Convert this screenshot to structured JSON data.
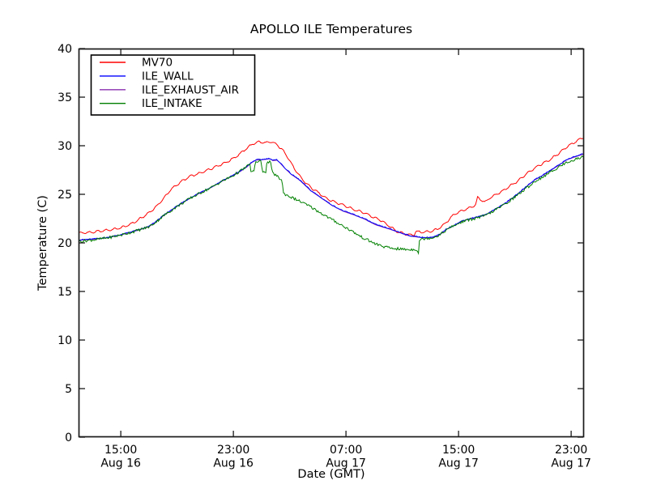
{
  "chart_data": {
    "type": "line",
    "title": "APOLLO ILE Temperatures",
    "xlabel": "Date (GMT)",
    "ylabel": "Temperature (C)",
    "ylim": [
      0,
      40
    ],
    "yticks": [
      0,
      5,
      10,
      15,
      20,
      25,
      30,
      35,
      40
    ],
    "x_unit": "hours after left edge (~12:00 Aug 16 GMT)",
    "xlim": [
      0,
      35.92
    ],
    "xticks": [
      {
        "t": 3,
        "time": "15:00",
        "date": "Aug 16"
      },
      {
        "t": 11,
        "time": "23:00",
        "date": "Aug 16"
      },
      {
        "t": 19,
        "time": "07:00",
        "date": "Aug 17"
      },
      {
        "t": 27,
        "time": "15:00",
        "date": "Aug 17"
      },
      {
        "t": 35,
        "time": "23:00",
        "date": "Aug 17"
      }
    ],
    "grid": false,
    "legend_position": "upper left",
    "legend": [
      {
        "label": "MV70",
        "color": "#ff0000"
      },
      {
        "label": "ILE_WALL",
        "color": "#0000ff"
      },
      {
        "label": "ILE_EXHAUST_AIR",
        "color": "#8b2fb0"
      },
      {
        "label": "ILE_INTAKE",
        "color": "#008000"
      }
    ],
    "draw_order": [
      "MV70",
      "ILE_EXHAUST_AIR",
      "ILE_WALL",
      "ILE_INTAKE"
    ],
    "series": [
      {
        "name": "MV70",
        "color": "#ff0000",
        "texture": {
          "noise": 0.035,
          "wave_amp": 0.1,
          "wave_period": 0.6
        },
        "points": [
          [
            0,
            21.0
          ],
          [
            0.5,
            21.05
          ],
          [
            1,
            21.1
          ],
          [
            1.5,
            21.2
          ],
          [
            2,
            21.3
          ],
          [
            2.5,
            21.4
          ],
          [
            3,
            21.55
          ],
          [
            3.5,
            21.8
          ],
          [
            4,
            22.15
          ],
          [
            4.5,
            22.6
          ],
          [
            5,
            23.1
          ],
          [
            5.5,
            23.7
          ],
          [
            6,
            24.5
          ],
          [
            6.5,
            25.4
          ],
          [
            7,
            26.0
          ],
          [
            7.5,
            26.5
          ],
          [
            8,
            26.9
          ],
          [
            8.5,
            27.1
          ],
          [
            9,
            27.4
          ],
          [
            9.5,
            27.7
          ],
          [
            10,
            28.0
          ],
          [
            10.5,
            28.3
          ],
          [
            11,
            28.7
          ],
          [
            11.5,
            29.2
          ],
          [
            12,
            29.8
          ],
          [
            12.4,
            30.2
          ],
          [
            12.8,
            30.4
          ],
          [
            13.3,
            30.3
          ],
          [
            13.7,
            30.4
          ],
          [
            14.1,
            30.1
          ],
          [
            14.4,
            29.7
          ],
          [
            14.8,
            29.0
          ],
          [
            15.1,
            28.2
          ],
          [
            15.4,
            27.5
          ],
          [
            15.8,
            26.7
          ],
          [
            16.2,
            26.1
          ],
          [
            16.6,
            25.6
          ],
          [
            17,
            25.2
          ],
          [
            17.6,
            24.6
          ],
          [
            18.2,
            24.2
          ],
          [
            19,
            23.8
          ],
          [
            19.6,
            23.4
          ],
          [
            20.3,
            23.1
          ],
          [
            21,
            22.6
          ],
          [
            21.5,
            22.3
          ],
          [
            22,
            21.8
          ],
          [
            22.6,
            21.2
          ],
          [
            23.2,
            20.9
          ],
          [
            23.85,
            20.8
          ],
          [
            23.95,
            21.2
          ],
          [
            24.3,
            21.1
          ],
          [
            24.9,
            21.15
          ],
          [
            25.5,
            21.4
          ],
          [
            26,
            21.9
          ],
          [
            26.65,
            22.9
          ],
          [
            27.2,
            23.3
          ],
          [
            27.8,
            23.6
          ],
          [
            28.2,
            23.9
          ],
          [
            28.35,
            24.65
          ],
          [
            28.5,
            24.5
          ],
          [
            28.9,
            24.2
          ],
          [
            29.3,
            24.7
          ],
          [
            30.1,
            25.3
          ],
          [
            30.7,
            25.9
          ],
          [
            31.25,
            26.4
          ],
          [
            31.8,
            27.1
          ],
          [
            32.4,
            27.7
          ],
          [
            33,
            28.2
          ],
          [
            33.55,
            28.6
          ],
          [
            34.1,
            29.2
          ],
          [
            34.7,
            29.9
          ],
          [
            35.3,
            30.4
          ],
          [
            35.92,
            30.9
          ]
        ]
      },
      {
        "name": "ILE_WALL",
        "color": "#0000ff",
        "texture": {
          "noise": 0.05,
          "wave_amp": 0,
          "wave_period": 1
        },
        "points": [
          [
            0,
            20.3
          ],
          [
            1,
            20.4
          ],
          [
            2,
            20.55
          ],
          [
            3,
            20.85
          ],
          [
            4,
            21.25
          ],
          [
            4.5,
            21.45
          ],
          [
            5,
            21.7
          ],
          [
            5.5,
            22.2
          ],
          [
            6,
            22.8
          ],
          [
            6.5,
            23.3
          ],
          [
            7,
            23.8
          ],
          [
            7.5,
            24.25
          ],
          [
            8,
            24.7
          ],
          [
            8.8,
            25.3
          ],
          [
            9.5,
            25.8
          ],
          [
            10.2,
            26.4
          ],
          [
            10.9,
            26.9
          ],
          [
            11.5,
            27.4
          ],
          [
            12,
            27.9
          ],
          [
            12.3,
            28.3
          ],
          [
            12.6,
            28.55
          ],
          [
            13.1,
            28.6
          ],
          [
            13.6,
            28.7
          ],
          [
            13.8,
            28.5
          ],
          [
            14.1,
            28.55
          ],
          [
            14.3,
            28.3
          ],
          [
            14.6,
            27.8
          ],
          [
            15.1,
            27.1
          ],
          [
            15.7,
            26.5
          ],
          [
            16.5,
            25.4
          ],
          [
            17.3,
            24.6
          ],
          [
            18,
            23.9
          ],
          [
            18.8,
            23.3
          ],
          [
            19.6,
            22.9
          ],
          [
            20.3,
            22.5
          ],
          [
            21.1,
            21.9
          ],
          [
            22,
            21.5
          ],
          [
            23,
            21.0
          ],
          [
            23.5,
            20.75
          ],
          [
            24,
            20.65
          ],
          [
            24.6,
            20.55
          ],
          [
            25.2,
            20.6
          ],
          [
            25.7,
            20.9
          ],
          [
            26.1,
            21.4
          ],
          [
            26.65,
            21.8
          ],
          [
            27.3,
            22.3
          ],
          [
            27.8,
            22.5
          ],
          [
            28.4,
            22.7
          ],
          [
            28.9,
            22.9
          ],
          [
            29.5,
            23.4
          ],
          [
            30.1,
            23.9
          ],
          [
            30.7,
            24.5
          ],
          [
            31.25,
            25.1
          ],
          [
            31.8,
            25.8
          ],
          [
            32.4,
            26.5
          ],
          [
            33,
            27.0
          ],
          [
            33.55,
            27.5
          ],
          [
            34.1,
            28.0
          ],
          [
            34.7,
            28.6
          ],
          [
            35.3,
            28.9
          ],
          [
            35.92,
            29.2
          ]
        ]
      },
      {
        "name": "ILE_EXHAUST_AIR",
        "color": "#8b2fb0",
        "texture": {
          "noise": 0,
          "wave_amp": 0,
          "wave_period": 1
        },
        "points": [
          [
            0,
            20.26
          ],
          [
            1,
            20.36
          ],
          [
            2,
            20.51
          ],
          [
            3,
            20.81
          ],
          [
            4,
            21.21
          ],
          [
            4.5,
            21.41
          ],
          [
            5,
            21.66
          ],
          [
            5.5,
            22.16
          ],
          [
            6,
            22.76
          ],
          [
            6.5,
            23.26
          ],
          [
            7,
            23.76
          ],
          [
            7.5,
            24.21
          ],
          [
            8,
            24.66
          ],
          [
            8.8,
            25.26
          ],
          [
            9.5,
            25.76
          ],
          [
            10.2,
            26.36
          ],
          [
            10.9,
            26.86
          ],
          [
            11.5,
            27.36
          ],
          [
            12,
            27.86
          ],
          [
            12.3,
            28.26
          ],
          [
            12.6,
            28.51
          ],
          [
            13.1,
            28.56
          ],
          [
            13.6,
            28.66
          ],
          [
            13.8,
            28.46
          ],
          [
            14.1,
            28.51
          ],
          [
            14.3,
            28.26
          ],
          [
            14.6,
            27.76
          ],
          [
            15.1,
            27.06
          ],
          [
            15.7,
            26.46
          ],
          [
            16.5,
            25.36
          ],
          [
            17.3,
            24.56
          ],
          [
            18,
            23.86
          ],
          [
            18.8,
            23.26
          ],
          [
            19.6,
            22.86
          ],
          [
            20.3,
            22.46
          ],
          [
            21.1,
            21.86
          ],
          [
            22,
            21.46
          ],
          [
            23,
            20.96
          ],
          [
            23.5,
            20.71
          ],
          [
            24,
            20.61
          ],
          [
            24.6,
            20.51
          ],
          [
            25.2,
            20.56
          ],
          [
            25.7,
            20.86
          ],
          [
            26.1,
            21.36
          ],
          [
            26.65,
            21.76
          ],
          [
            27.3,
            22.26
          ],
          [
            27.8,
            22.46
          ],
          [
            28.4,
            22.66
          ],
          [
            28.9,
            22.86
          ],
          [
            29.5,
            23.36
          ],
          [
            30.1,
            23.86
          ],
          [
            30.7,
            24.46
          ],
          [
            31.25,
            25.06
          ],
          [
            31.8,
            25.76
          ],
          [
            32.4,
            26.46
          ],
          [
            33,
            26.96
          ],
          [
            33.55,
            27.46
          ],
          [
            34.1,
            27.96
          ],
          [
            34.7,
            28.56
          ],
          [
            35.3,
            28.86
          ],
          [
            35.92,
            29.16
          ]
        ]
      },
      {
        "name": "ILE_INTAKE",
        "color": "#008000",
        "texture": {
          "noise": 0.14,
          "wave_amp": 0,
          "wave_period": 1
        },
        "points": [
          [
            0,
            20.15
          ],
          [
            1,
            20.3
          ],
          [
            2,
            20.5
          ],
          [
            3,
            20.8
          ],
          [
            4,
            21.2
          ],
          [
            5,
            21.65
          ],
          [
            5.5,
            22.15
          ],
          [
            6,
            22.75
          ],
          [
            6.5,
            23.25
          ],
          [
            7,
            23.75
          ],
          [
            7.5,
            24.2
          ],
          [
            8,
            24.65
          ],
          [
            8.8,
            25.25
          ],
          [
            9.5,
            25.75
          ],
          [
            10.2,
            26.35
          ],
          [
            10.9,
            26.85
          ],
          [
            11.5,
            27.4
          ],
          [
            12,
            27.9
          ],
          [
            12.15,
            28.3
          ],
          [
            12.25,
            27.3
          ],
          [
            12.45,
            27.3
          ],
          [
            12.55,
            28.3
          ],
          [
            12.95,
            28.4
          ],
          [
            13.05,
            27.4
          ],
          [
            13.3,
            27.35
          ],
          [
            13.4,
            28.35
          ],
          [
            13.65,
            28.3
          ],
          [
            13.75,
            27.2
          ],
          [
            14,
            27.0
          ],
          [
            14.3,
            26.6
          ],
          [
            14.45,
            26.5
          ],
          [
            14.55,
            25.1
          ],
          [
            15.1,
            24.7
          ],
          [
            15.7,
            24.3
          ],
          [
            16.5,
            23.7
          ],
          [
            17.3,
            23.0
          ],
          [
            18,
            22.4
          ],
          [
            18.6,
            21.9
          ],
          [
            19.2,
            21.4
          ],
          [
            20.1,
            20.6
          ],
          [
            21.1,
            19.9
          ],
          [
            21.7,
            19.6
          ],
          [
            22.2,
            19.45
          ],
          [
            23,
            19.35
          ],
          [
            23.5,
            19.3
          ],
          [
            23.9,
            19.35
          ],
          [
            24.05,
            19.3
          ],
          [
            24.15,
            18.9
          ],
          [
            24.22,
            20.3
          ],
          [
            24.6,
            20.45
          ],
          [
            25.2,
            20.55
          ],
          [
            25.7,
            20.85
          ],
          [
            26.1,
            21.3
          ],
          [
            26.65,
            21.75
          ],
          [
            27.3,
            22.2
          ],
          [
            27.8,
            22.4
          ],
          [
            28.4,
            22.6
          ],
          [
            28.9,
            22.8
          ],
          [
            29.5,
            23.3
          ],
          [
            30.1,
            23.8
          ],
          [
            30.7,
            24.4
          ],
          [
            31.25,
            25.0
          ],
          [
            31.8,
            25.6
          ],
          [
            32.4,
            26.3
          ],
          [
            33,
            26.8
          ],
          [
            33.55,
            27.3
          ],
          [
            34.1,
            27.8
          ],
          [
            34.7,
            28.3
          ],
          [
            35.3,
            28.6
          ],
          [
            35.92,
            28.9
          ]
        ]
      }
    ]
  }
}
